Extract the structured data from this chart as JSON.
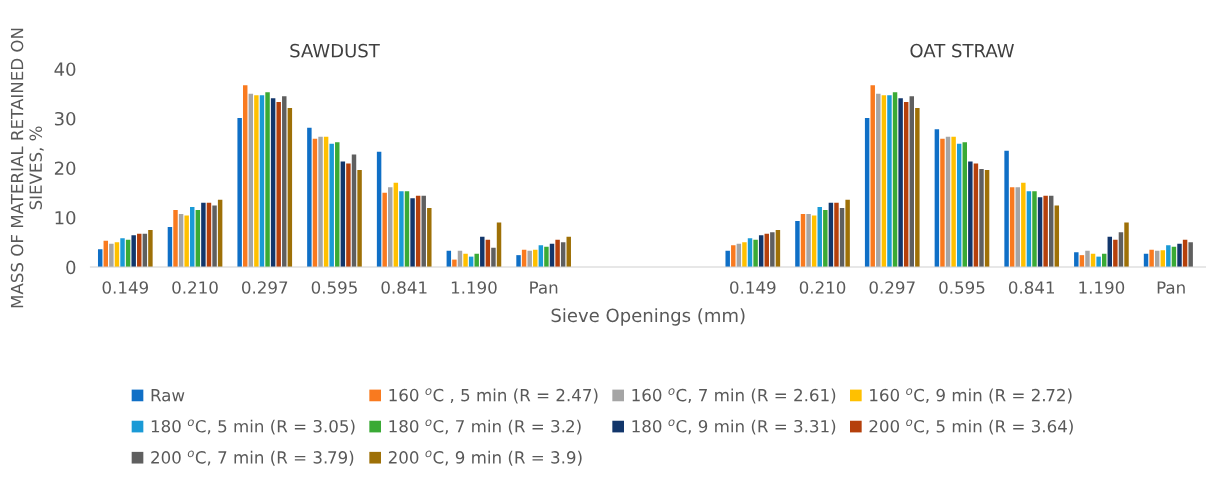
{
  "chart_data": {
    "type": "bar",
    "xlabel": "Sieve Openings (mm)",
    "ylabel": "MASS OF MATERIAL RETAINED ON\nSIEVES, %",
    "annotations": [
      "SAWDUST",
      "OAT STRAW"
    ],
    "categories": [
      "0.149",
      "0.210",
      "0.297",
      "0.595",
      "0.841",
      "1.190",
      "Pan",
      null,
      null,
      "0.149",
      "0.210",
      "0.297",
      "0.595",
      "0.841",
      "1.190",
      "Pan"
    ],
    "ylim": [
      0,
      40
    ],
    "yticks": [
      0,
      10,
      20,
      30,
      40
    ],
    "grid": false,
    "legend": "bottom",
    "series": [
      {
        "name": "Raw",
        "color": "#0f6fc6",
        "values": [
          3.6,
          8.1,
          30.1,
          28.1,
          23.3,
          3.3,
          2.4,
          null,
          null,
          3.3,
          9.3,
          30.1,
          27.8,
          23.5,
          3.0,
          2.7
        ]
      },
      {
        "name": "160 $^{o}$C , 5 min (R = 2.47)",
        "color": "#f97a1f",
        "values": [
          5.3,
          11.5,
          36.7,
          25.9,
          15.0,
          1.5,
          3.5,
          null,
          null,
          4.4,
          10.7,
          36.7,
          25.9,
          16.1,
          2.4,
          3.5
        ]
      },
      {
        "name": "160 $^{o}$C, 7 min (R = 2.61)",
        "color": "#a5a5a5",
        "values": [
          4.7,
          10.7,
          35.0,
          26.3,
          16.1,
          3.3,
          3.3,
          null,
          null,
          4.7,
          10.7,
          35.0,
          26.3,
          16.1,
          3.3,
          3.3
        ]
      },
      {
        "name": "160 $^{o}$C, 9 min (R = 2.72)",
        "color": "#ffc000",
        "values": [
          5.0,
          10.4,
          34.7,
          26.3,
          17.0,
          2.7,
          3.5,
          null,
          null,
          5.0,
          10.4,
          34.7,
          26.3,
          17.0,
          2.7,
          3.4
        ]
      },
      {
        "name": "180 $^{o}$C, 5 min (R = 3.05)",
        "color": "#1a9ad6",
        "values": [
          5.8,
          12.1,
          34.7,
          24.9,
          15.3,
          2.1,
          4.4,
          null,
          null,
          5.8,
          12.1,
          34.7,
          24.9,
          15.3,
          2.1,
          4.4
        ]
      },
      {
        "name": "180 $^{o}$C, 7 min (R = 3.2)",
        "color": "#3aaa35",
        "values": [
          5.5,
          11.5,
          35.3,
          25.2,
          15.3,
          2.7,
          4.1,
          null,
          null,
          5.5,
          11.5,
          35.3,
          25.2,
          15.3,
          2.7,
          4.1
        ]
      },
      {
        "name": "180 $^{o}$C, 9 min (R = 3.31)",
        "color": "#12366b",
        "values": [
          6.4,
          13.0,
          34.1,
          21.3,
          13.9,
          6.1,
          4.7,
          null,
          null,
          6.4,
          13.0,
          34.1,
          21.3,
          14.1,
          6.1,
          4.7
        ]
      },
      {
        "name": "200 $^{o}$C, 5 min (R = 3.64)",
        "color": "#b5400b",
        "values": [
          6.7,
          13.0,
          33.3,
          20.9,
          14.4,
          5.5,
          5.5,
          null,
          null,
          6.7,
          13.0,
          33.3,
          20.9,
          14.4,
          5.5,
          5.5
        ]
      },
      {
        "name": "200 $^{o}$C, 7 min (R = 3.79)",
        "color": "#5f5f5f",
        "values": [
          6.7,
          12.4,
          34.5,
          22.7,
          14.4,
          3.9,
          5.0,
          null,
          null,
          7.0,
          11.9,
          34.5,
          19.8,
          14.4,
          7.0,
          5.0
        ]
      },
      {
        "name": "200 $^{o}$C, 9 min (R = 3.9)",
        "color": "#9e7007",
        "values": [
          7.5,
          13.6,
          32.1,
          19.6,
          11.9,
          9.0,
          6.1,
          null,
          null,
          7.5,
          13.6,
          32.1,
          19.6,
          12.4,
          9.0,
          null
        ]
      }
    ]
  }
}
